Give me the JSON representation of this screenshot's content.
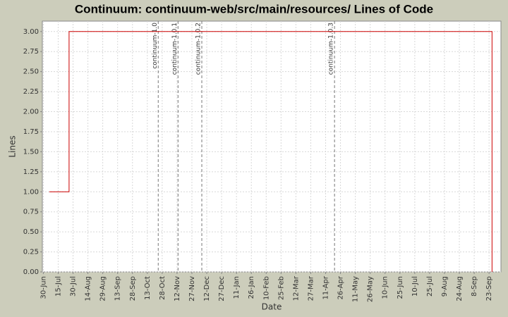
{
  "chart_data": {
    "type": "line",
    "step": true,
    "title": "Continuum: continuum-web/src/main/resources/ Lines of Code",
    "x_label": "Date",
    "y_label": "Lines",
    "grid": true,
    "series": [
      {
        "name": "Lines",
        "color": "#cc0000",
        "x": [
          6,
          26,
          453
        ],
        "values": [
          1,
          3,
          0
        ]
      }
    ],
    "markers": [
      {
        "label": "continuum-1.0",
        "x": 116
      },
      {
        "label": "continuum-1.0.1",
        "x": 136
      },
      {
        "label": "continuum-1.0.2",
        "x": 160
      },
      {
        "label": "continuum-1.0.3",
        "x": 294
      }
    ],
    "xlim": [
      -1,
      462
    ],
    "xticks": [
      {
        "value": 0,
        "label": "30-Jun"
      },
      {
        "value": 15,
        "label": "15-Jul"
      },
      {
        "value": 30,
        "label": "30-Jul"
      },
      {
        "value": 45,
        "label": "14-Aug"
      },
      {
        "value": 60,
        "label": "29-Aug"
      },
      {
        "value": 75,
        "label": "13-Sep"
      },
      {
        "value": 90,
        "label": "28-Sep"
      },
      {
        "value": 105,
        "label": "13-Oct"
      },
      {
        "value": 120,
        "label": "28-Oct"
      },
      {
        "value": 135,
        "label": "12-Nov"
      },
      {
        "value": 150,
        "label": "27-Nov"
      },
      {
        "value": 165,
        "label": "12-Dec"
      },
      {
        "value": 180,
        "label": "27-Dec"
      },
      {
        "value": 195,
        "label": "11-Jan"
      },
      {
        "value": 210,
        "label": "26-Jan"
      },
      {
        "value": 225,
        "label": "10-Feb"
      },
      {
        "value": 240,
        "label": "25-Feb"
      },
      {
        "value": 255,
        "label": "12-Mar"
      },
      {
        "value": 270,
        "label": "27-Mar"
      },
      {
        "value": 285,
        "label": "11-Apr"
      },
      {
        "value": 300,
        "label": "26-Apr"
      },
      {
        "value": 315,
        "label": "11-May"
      },
      {
        "value": 330,
        "label": "26-May"
      },
      {
        "value": 345,
        "label": "10-Jun"
      },
      {
        "value": 360,
        "label": "25-Jun"
      },
      {
        "value": 375,
        "label": "10-Jul"
      },
      {
        "value": 390,
        "label": "25-Jul"
      },
      {
        "value": 405,
        "label": "9-Aug"
      },
      {
        "value": 420,
        "label": "24-Aug"
      },
      {
        "value": 435,
        "label": "8-Sep"
      },
      {
        "value": 450,
        "label": "23-Sep"
      }
    ],
    "ylim": [
      0,
      3.13
    ],
    "yticks": [
      {
        "value": 0,
        "label": "0.00"
      },
      {
        "value": 0.25,
        "label": "0.25"
      },
      {
        "value": 0.5,
        "label": "0.50"
      },
      {
        "value": 0.75,
        "label": "0.75"
      },
      {
        "value": 1,
        "label": "1.00"
      },
      {
        "value": 1.25,
        "label": "1.25"
      },
      {
        "value": 1.5,
        "label": "1.50"
      },
      {
        "value": 1.75,
        "label": "1.75"
      },
      {
        "value": 2,
        "label": "2.00"
      },
      {
        "value": 2.25,
        "label": "2.25"
      },
      {
        "value": 2.5,
        "label": "2.50"
      },
      {
        "value": 2.75,
        "label": "2.75"
      },
      {
        "value": 3,
        "label": "3.00"
      }
    ]
  }
}
